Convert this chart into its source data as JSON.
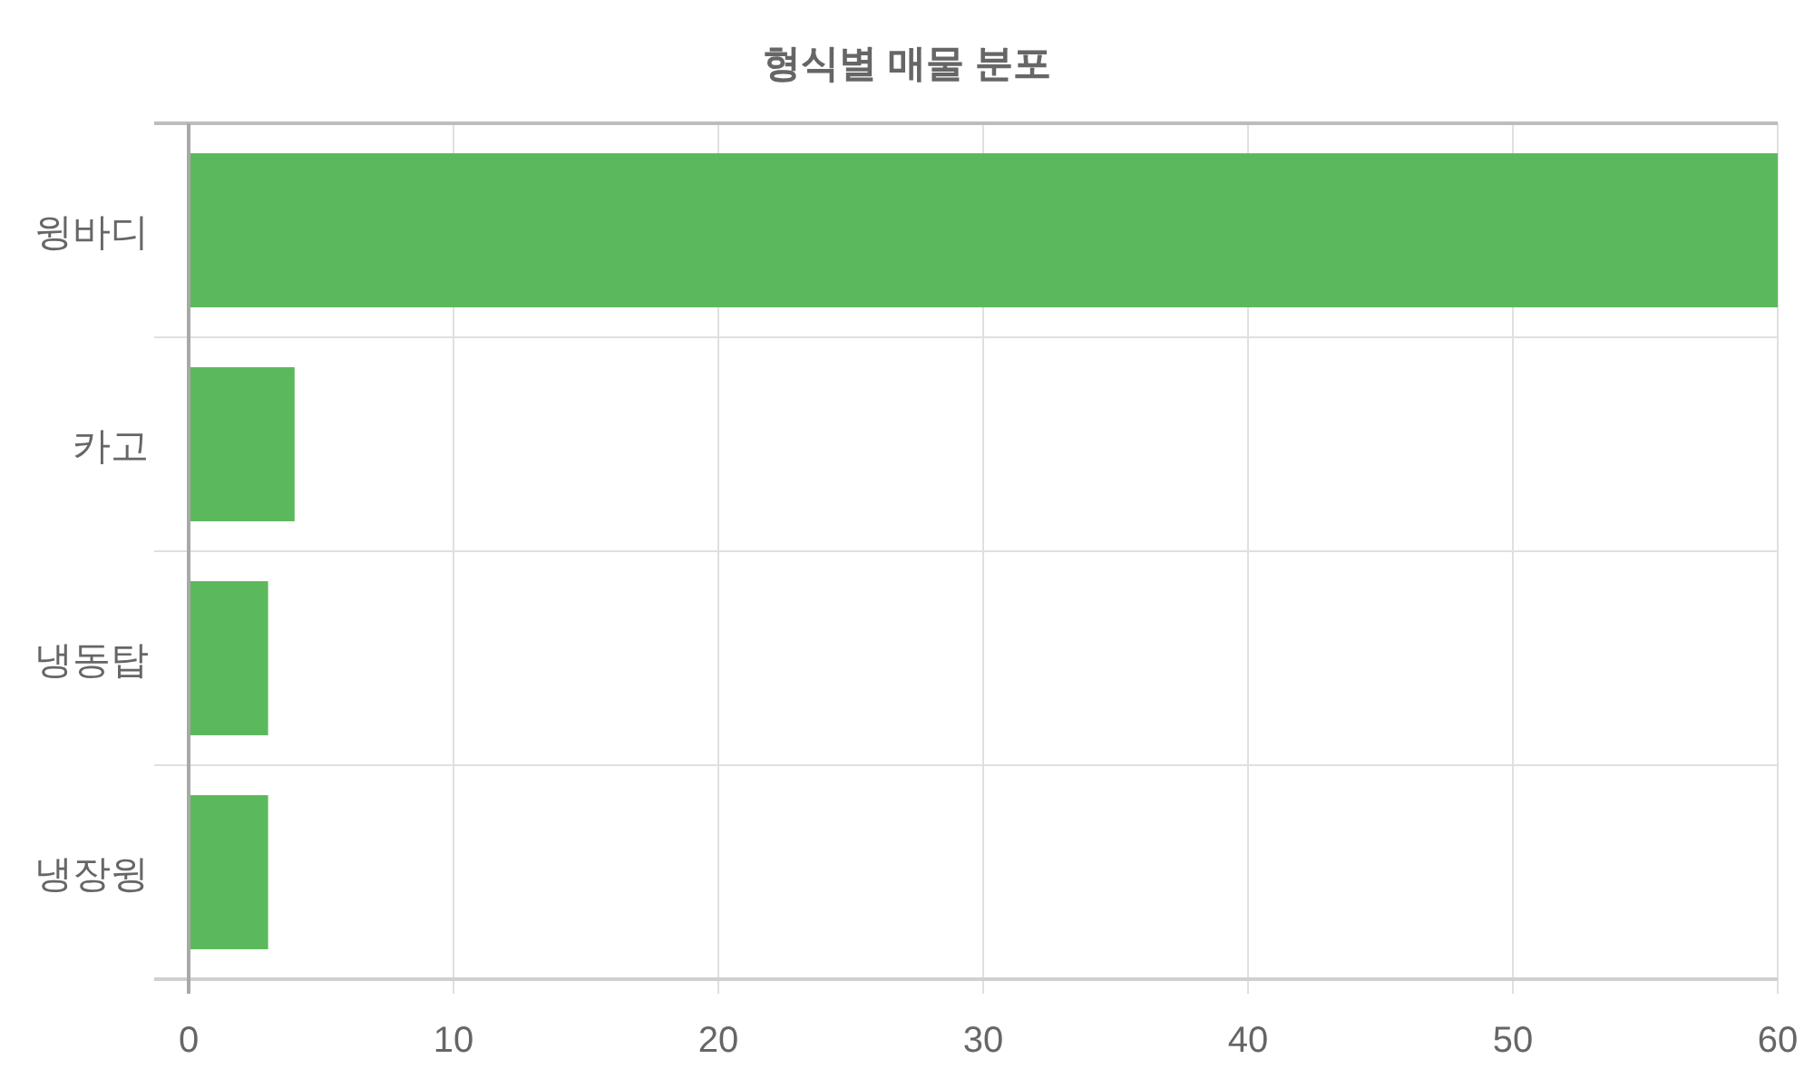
{
  "chart_data": {
    "type": "bar",
    "orientation": "horizontal",
    "title": "형식별 매물 분포",
    "categories": [
      "윙바디",
      "카고",
      "냉동탑",
      "냉장윙"
    ],
    "values": [
      60,
      4,
      3,
      3
    ],
    "color": "#5cb85c",
    "xlim": [
      0,
      60
    ],
    "xticks": [
      0,
      10,
      20,
      30,
      40,
      50,
      60
    ],
    "grid": true
  }
}
